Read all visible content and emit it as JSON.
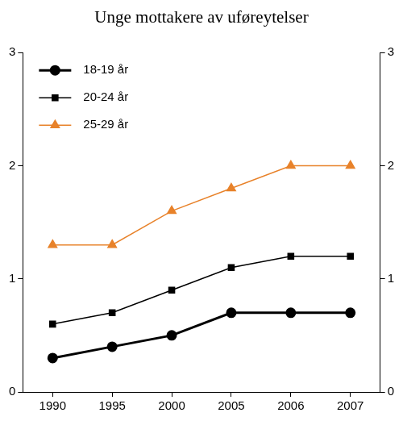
{
  "chart_data": {
    "type": "line",
    "title": "Unge mottakere av uføreytelser",
    "categories": [
      "1990",
      "1995",
      "2000",
      "2005",
      "2006",
      "2007"
    ],
    "series": [
      {
        "name": "18-19 år",
        "color": "#000000",
        "marker": "circle",
        "line_style": "solid",
        "values": [
          0.3,
          0.4,
          0.5,
          0.7,
          0.7,
          0.7
        ]
      },
      {
        "name": "20-24 år",
        "color": "#000000",
        "marker": "square",
        "line_style": "solid",
        "values": [
          0.6,
          0.7,
          0.9,
          1.1,
          1.2,
          1.2
        ]
      },
      {
        "name": "25-29 år",
        "color": "#e8822a",
        "marker": "triangle",
        "line_style": "solid",
        "values": [
          1.3,
          1.3,
          1.6,
          1.8,
          2.0,
          2.0
        ]
      }
    ],
    "ylim": [
      0,
      3
    ],
    "yticks": [
      0,
      1,
      2,
      3
    ],
    "y2lim": [
      0,
      3
    ],
    "y2ticks": [
      0,
      1,
      2,
      3
    ],
    "grid": false,
    "legend": "top-left"
  }
}
